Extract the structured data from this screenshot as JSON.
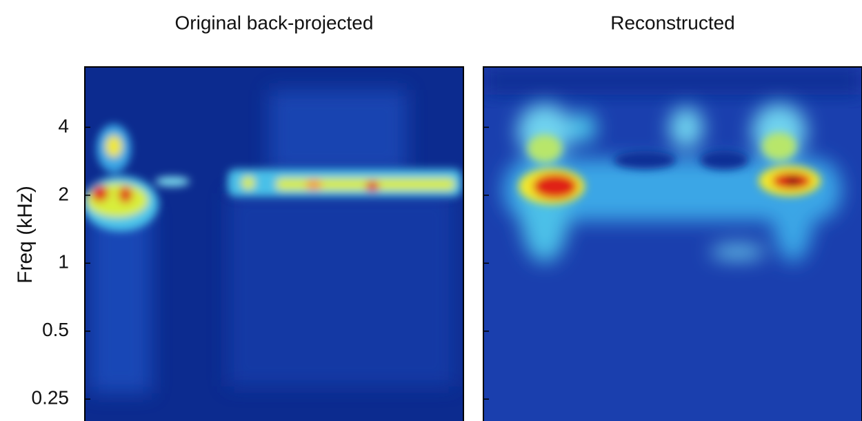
{
  "chart_data": [
    {
      "type": "heatmap",
      "title": "Original back-projected",
      "ylabel": "Freq (kHz)",
      "yscale": "log",
      "ylim": [
        0.2,
        7.4
      ],
      "yticks": [
        0.25,
        0.5,
        1,
        2,
        4
      ],
      "ytick_labels": true
    },
    {
      "type": "heatmap",
      "title": "Reconstructed",
      "yscale": "log",
      "ylim": [
        0.2,
        7.4
      ],
      "yticks": [
        0.25,
        0.5,
        1,
        2,
        4
      ],
      "ytick_labels": false
    }
  ]
}
